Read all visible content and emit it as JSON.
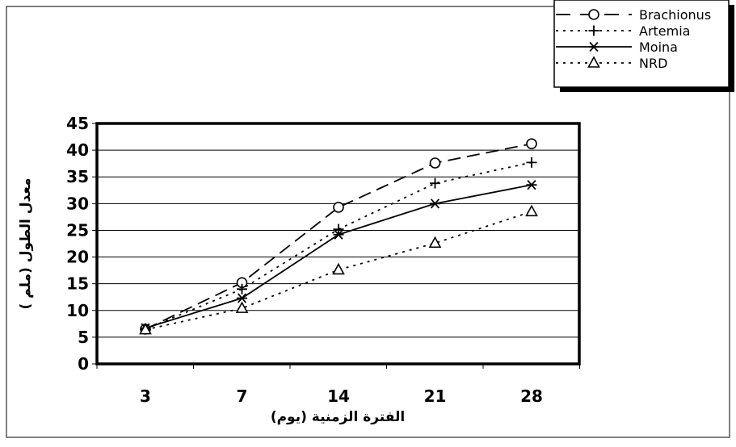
{
  "chart_data": {
    "type": "line",
    "categories": [
      "3",
      "7",
      "14",
      "21",
      "28"
    ],
    "xlabel": "الفترة الزمنية (يوم)",
    "ylabel": "معدل الطول (ملم )",
    "ylim": [
      0,
      45
    ],
    "yticks": [
      "0",
      "5",
      "10",
      "15",
      "20",
      "25",
      "30",
      "35",
      "40",
      "45"
    ],
    "grid": true,
    "legend_position": "top-right",
    "series": [
      {
        "name": "Brachionus",
        "values": [
          6.5,
          15.2,
          29.3,
          37.6,
          41.2
        ],
        "marker": "circle",
        "dash": "dashed"
      },
      {
        "name": "Artemia",
        "values": [
          6.5,
          14.0,
          25.2,
          33.8,
          37.7
        ],
        "marker": "plus",
        "dash": "dotted"
      },
      {
        "name": "Moina",
        "values": [
          6.7,
          12.3,
          24.2,
          30.0,
          33.5
        ],
        "marker": "asterisk",
        "dash": "solid"
      },
      {
        "name": "NRD",
        "values": [
          6.4,
          10.4,
          17.6,
          22.6,
          28.5
        ],
        "marker": "triangle",
        "dash": "dashdot"
      }
    ]
  }
}
